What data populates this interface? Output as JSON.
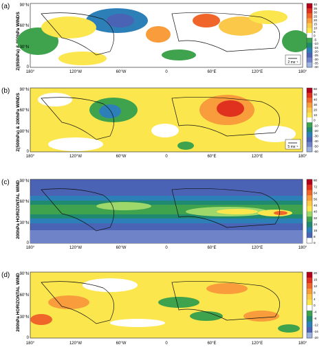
{
  "panels": [
    {
      "letter": "(a)",
      "side_label": "Z(850hPa) & 850hPa WINDS",
      "lat_ticks": [
        "90°N",
        "60°N",
        "30°N",
        "0"
      ],
      "lon_ticks": [
        "180°",
        "120°W",
        "60°W",
        "0",
        "60°E",
        "120°E",
        "180°"
      ],
      "colorbar_ticks": [
        "40",
        "35",
        "30",
        "25",
        "20",
        "15",
        "10",
        "5",
        "0",
        "-5",
        "-10",
        "-15",
        "-20",
        "-25",
        "-30",
        "-35",
        "-40"
      ],
      "ref_vector": "2 ms⁻¹",
      "colors": [
        "#b3001b",
        "#e0301e",
        "#f0662a",
        "#f89c3c",
        "#fcc84a",
        "#fbe64e",
        "#ffffff",
        "#3fa34d",
        "#1f8a70",
        "#2d7fb8",
        "#4a63b5",
        "#6f83c9",
        "#9eb3e0"
      ]
    },
    {
      "letter": "(b)",
      "side_label": "Z(500hPa) & 200hPa WINDS",
      "lat_ticks": [
        "90°N",
        "60°N",
        "30°N",
        "0"
      ],
      "lon_ticks": [
        "180°",
        "120°W",
        "60°W",
        "0",
        "60°E",
        "120°E",
        "180°"
      ],
      "colorbar_ticks": [
        "60",
        "50",
        "40",
        "30",
        "20",
        "10",
        "0",
        "-10",
        "-20",
        "-30",
        "-40",
        "-50",
        "-60"
      ],
      "ref_vector": "5 ms⁻¹",
      "colors": [
        "#b3001b",
        "#e0301e",
        "#f0662a",
        "#f89c3c",
        "#fcc84a",
        "#fbe64e",
        "#ffffff",
        "#3fa34d",
        "#1f8a70",
        "#2d7fb8",
        "#4a63b5",
        "#6f83c9",
        "#9eb3e0"
      ]
    },
    {
      "letter": "(c)",
      "side_label": "200hPa HORIZONTAL WIND",
      "lat_ticks": [
        "90°N",
        "60°N",
        "30°N",
        "0"
      ],
      "lon_ticks": [
        "180°",
        "120°W",
        "60°W",
        "0",
        "60°E",
        "120°E",
        "180°"
      ],
      "colorbar_ticks": [
        "80",
        "72",
        "64",
        "56",
        "48",
        "40",
        "32",
        "24",
        "16",
        "8",
        "0"
      ],
      "ref_vector": "",
      "colors": [
        "#b3001b",
        "#e0301e",
        "#f0662a",
        "#f89c3c",
        "#fcc84a",
        "#fbe64e",
        "#9fd86a",
        "#3fa34d",
        "#1f8a70",
        "#2d7fb8",
        "#4a63b5",
        "#ffffff"
      ]
    },
    {
      "letter": "(d)",
      "side_label": "200hPa HORIZONTAL WIND",
      "lat_ticks": [
        "90°N",
        "60°N",
        "30°N",
        "0"
      ],
      "lon_ticks": [
        "180°",
        "120°W",
        "60°W",
        "0",
        "60°E",
        "120°E",
        "180°"
      ],
      "colorbar_ticks": [
        "20",
        "16",
        "12",
        "8",
        "4",
        "0",
        "-4",
        "-8",
        "-12",
        "-16",
        "-20"
      ],
      "ref_vector": "",
      "colors": [
        "#b3001b",
        "#e0301e",
        "#f0662a",
        "#f89c3c",
        "#fcc84a",
        "#fbe64e",
        "#ffffff",
        "#3fa34d",
        "#1f8a70",
        "#2d7fb8",
        "#4a63b5",
        "#9eb3e0"
      ]
    }
  ]
}
